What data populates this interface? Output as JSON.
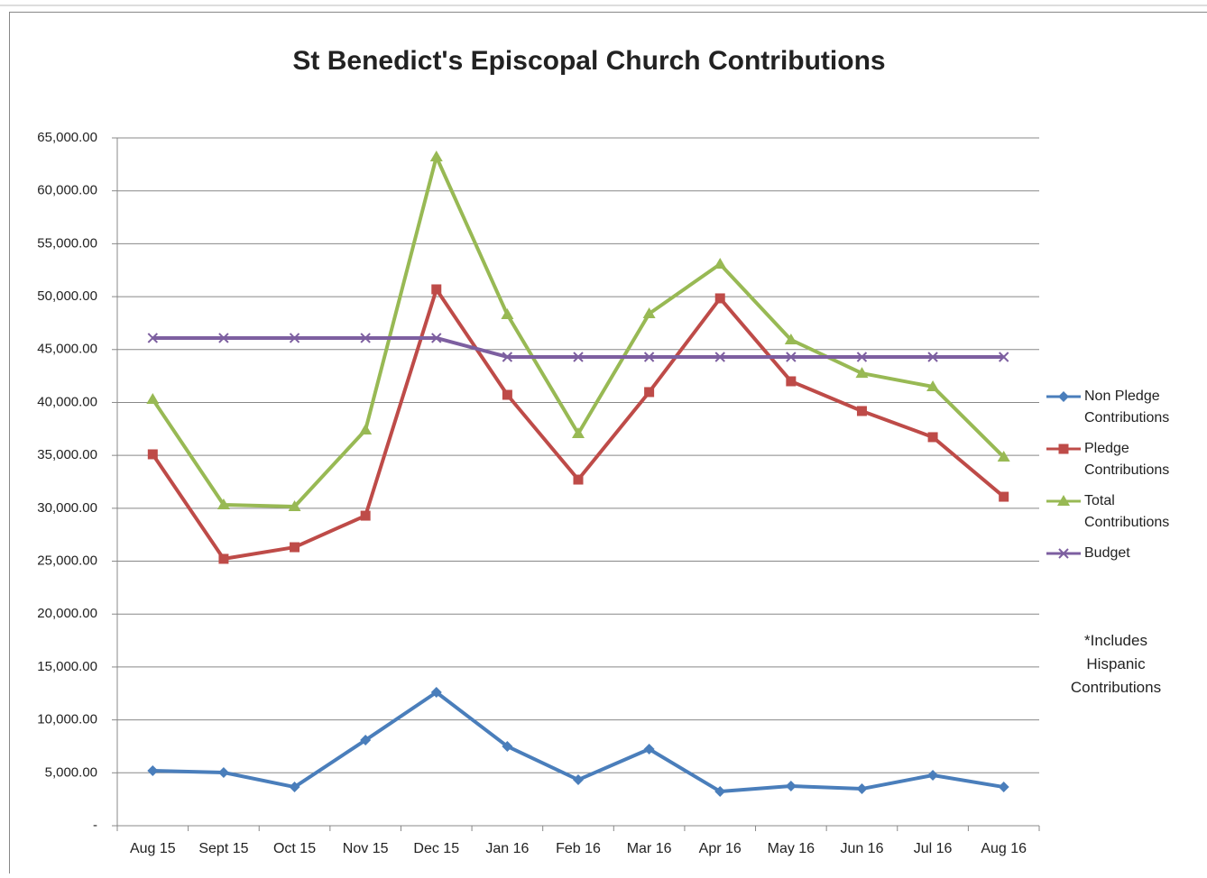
{
  "chart_data": {
    "type": "line",
    "title": "St Benedict's Episcopal Church Contributions",
    "annotation": "*Includes Hispanic Contributions",
    "categories": [
      "Aug 15",
      "Sept 15",
      "Oct 15",
      "Nov 15",
      "Dec 15",
      "Jan 16",
      "Feb 16",
      "Mar 16",
      "Apr 16",
      "May 16",
      "Jun 16",
      "Jul 16",
      "Aug 16"
    ],
    "series": [
      {
        "name": "Non Pledge Contributions",
        "color": "#4a7ebb",
        "marker": "diamond",
        "values": [
          5200,
          5030,
          3660,
          8090,
          12610,
          7500,
          4340,
          7240,
          3240,
          3750,
          3490,
          4770,
          3660
        ]
      },
      {
        "name": "Pledge Contributions",
        "color": "#be4b48",
        "marker": "square",
        "values": [
          35100,
          25220,
          26320,
          29300,
          50690,
          40720,
          32710,
          40980,
          49840,
          42000,
          39190,
          36720,
          31090
        ]
      },
      {
        "name": "Total Contributions",
        "color": "#98b954",
        "marker": "triangle",
        "values": [
          40300,
          30330,
          30160,
          37400,
          63210,
          48300,
          37060,
          48390,
          53070,
          45920,
          42760,
          41490,
          34840
        ]
      },
      {
        "name": "Budget",
        "color": "#7d5fa0",
        "marker": "x",
        "values": [
          46090,
          46090,
          46090,
          46090,
          46090,
          44300,
          44300,
          44300,
          44300,
          44300,
          44300,
          44300,
          44300
        ]
      }
    ],
    "ylim": [
      0,
      65000
    ],
    "yticks": [
      {
        "value": 0,
        "label": "-"
      },
      {
        "value": 5000,
        "label": "5,000.00"
      },
      {
        "value": 10000,
        "label": "10,000.00"
      },
      {
        "value": 15000,
        "label": "15,000.00"
      },
      {
        "value": 20000,
        "label": "20,000.00"
      },
      {
        "value": 25000,
        "label": "25,000.00"
      },
      {
        "value": 30000,
        "label": "30,000.00"
      },
      {
        "value": 35000,
        "label": "35,000.00"
      },
      {
        "value": 40000,
        "label": "40,000.00"
      },
      {
        "value": 45000,
        "label": "45,000.00"
      },
      {
        "value": 50000,
        "label": "50,000.00"
      },
      {
        "value": 55000,
        "label": "55,000.00"
      },
      {
        "value": 60000,
        "label": "60,000.00"
      },
      {
        "value": 65000,
        "label": "65,000.00"
      }
    ],
    "grid": true,
    "legend": "right"
  }
}
